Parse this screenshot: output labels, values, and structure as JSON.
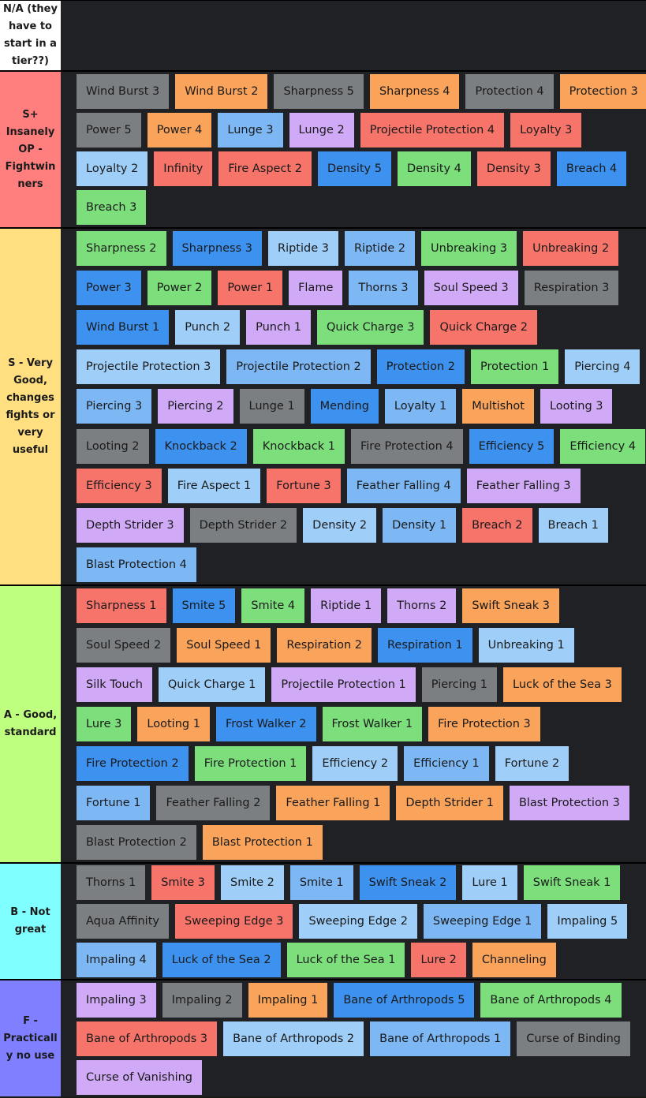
{
  "colors": {
    "orange": "#f9a35b",
    "gray": "#7c7f82",
    "blue": "#3d92f0",
    "light_blue": "#9fcff8",
    "sky": "#7db8f5",
    "green": "#7cdf7c",
    "red": "#f6746a",
    "purple": "#d0aaf6",
    "board": "#1f2125"
  },
  "tiers": [
    {
      "label": "N/A (they\nhave to\nstart in a\ntier??)",
      "color": "#ffffff",
      "rows": []
    },
    {
      "label": "S+\nInsanely\nOP -\nFightwin\nners",
      "color": "#ff7f7e",
      "rows": [
        [
          {
            "name": "Wind Burst 3",
            "c": "gray"
          },
          {
            "name": "Wind Burst 2",
            "c": "orange"
          },
          {
            "name": "Sharpness 5",
            "c": "gray"
          },
          {
            "name": "Sharpness 4",
            "c": "orange"
          },
          {
            "name": "Protection 4",
            "c": "gray"
          },
          {
            "name": "Protection 3",
            "c": "orange"
          }
        ],
        [
          {
            "name": "Power 5",
            "c": "gray"
          },
          {
            "name": "Power 4",
            "c": "orange"
          },
          {
            "name": "Lunge 3",
            "c": "sky"
          },
          {
            "name": "Lunge 2",
            "c": "purple"
          },
          {
            "name": "Projectile Protection 4",
            "c": "red"
          },
          {
            "name": "Loyalty 3",
            "c": "red"
          }
        ],
        [
          {
            "name": "Loyalty 2",
            "c": "light_blue"
          },
          {
            "name": "Infinity",
            "c": "red"
          },
          {
            "name": "Fire Aspect 2",
            "c": "red"
          },
          {
            "name": "Density 5",
            "c": "blue"
          },
          {
            "name": "Density 4",
            "c": "green"
          },
          {
            "name": "Density 3",
            "c": "red"
          },
          {
            "name": "Breach 4",
            "c": "blue"
          }
        ],
        [
          {
            "name": "Breach 3",
            "c": "green"
          }
        ]
      ]
    },
    {
      "label": "S - Very\nGood,\nchanges\nfights or\nvery\nuseful",
      "color": "#ffdf80",
      "rows": [
        [
          {
            "name": "Sharpness 2",
            "c": "green"
          },
          {
            "name": "Sharpness 3",
            "c": "blue"
          },
          {
            "name": "Riptide 3",
            "c": "light_blue"
          },
          {
            "name": "Riptide 2",
            "c": "sky"
          },
          {
            "name": "Unbreaking 3",
            "c": "green"
          },
          {
            "name": "Unbreaking 2",
            "c": "red"
          }
        ],
        [
          {
            "name": "Power 3",
            "c": "blue"
          },
          {
            "name": "Power 2",
            "c": "green"
          },
          {
            "name": "Power 1",
            "c": "red"
          },
          {
            "name": "Flame",
            "c": "purple"
          },
          {
            "name": "Thorns 3",
            "c": "sky"
          },
          {
            "name": "Soul Speed 3",
            "c": "purple"
          },
          {
            "name": "Respiration 3",
            "c": "gray"
          }
        ],
        [
          {
            "name": "Wind Burst 1",
            "c": "blue"
          },
          {
            "name": "Punch 2",
            "c": "light_blue"
          },
          {
            "name": "Punch 1",
            "c": "purple"
          },
          {
            "name": "Quick Charge 3",
            "c": "green"
          },
          {
            "name": "Quick Charge 2",
            "c": "red"
          }
        ],
        [
          {
            "name": "Projectile Protection 3",
            "c": "light_blue"
          },
          {
            "name": "Projectile Protection 2",
            "c": "sky"
          },
          {
            "name": "Protection 2",
            "c": "blue"
          },
          {
            "name": "Protection 1",
            "c": "green"
          },
          {
            "name": "Piercing 4",
            "c": "light_blue"
          }
        ],
        [
          {
            "name": "Piercing 3",
            "c": "sky"
          },
          {
            "name": "Piercing 2",
            "c": "purple"
          },
          {
            "name": "Lunge 1",
            "c": "gray"
          },
          {
            "name": "Mending",
            "c": "blue"
          },
          {
            "name": "Loyalty 1",
            "c": "sky"
          },
          {
            "name": "Multishot",
            "c": "orange"
          },
          {
            "name": "Looting 3",
            "c": "purple"
          }
        ],
        [
          {
            "name": "Looting 2",
            "c": "gray"
          },
          {
            "name": "Knockback 2",
            "c": "blue"
          },
          {
            "name": "Knockback 1",
            "c": "green"
          },
          {
            "name": "Fire Protection 4",
            "c": "gray"
          },
          {
            "name": "Efficiency 5",
            "c": "blue"
          },
          {
            "name": "Efficiency 4",
            "c": "green"
          }
        ],
        [
          {
            "name": "Efficiency 3",
            "c": "red"
          },
          {
            "name": "Fire Aspect 1",
            "c": "light_blue"
          },
          {
            "name": "Fortune 3",
            "c": "red"
          },
          {
            "name": "Feather Falling 4",
            "c": "sky"
          },
          {
            "name": "Feather Falling 3",
            "c": "purple"
          }
        ],
        [
          {
            "name": "Depth Strider 3",
            "c": "purple"
          },
          {
            "name": "Depth Strider 2",
            "c": "gray"
          },
          {
            "name": "Density 2",
            "c": "light_blue"
          },
          {
            "name": "Density 1",
            "c": "sky"
          },
          {
            "name": "Breach 2",
            "c": "red"
          },
          {
            "name": "Breach 1",
            "c": "light_blue"
          }
        ],
        [
          {
            "name": "Blast Protection 4",
            "c": "sky"
          }
        ]
      ]
    },
    {
      "label": "A - Good,\nstandard",
      "color": "#bfff7f",
      "rows": [
        [
          {
            "name": "Sharpness 1",
            "c": "red"
          },
          {
            "name": "Smite 5",
            "c": "blue"
          },
          {
            "name": "Smite 4",
            "c": "green"
          },
          {
            "name": "Riptide 1",
            "c": "purple"
          },
          {
            "name": "Thorns 2",
            "c": "purple"
          },
          {
            "name": "Swift Sneak 3",
            "c": "orange"
          }
        ],
        [
          {
            "name": "Soul Speed 2",
            "c": "gray"
          },
          {
            "name": "Soul Speed 1",
            "c": "orange"
          },
          {
            "name": "Respiration 2",
            "c": "orange"
          },
          {
            "name": "Respiration 1",
            "c": "blue"
          },
          {
            "name": "Unbreaking 1",
            "c": "light_blue"
          }
        ],
        [
          {
            "name": "Silk Touch",
            "c": "purple"
          },
          {
            "name": "Quick Charge 1",
            "c": "light_blue"
          },
          {
            "name": "Projectile Protection 1",
            "c": "purple"
          },
          {
            "name": "Piercing 1",
            "c": "gray"
          },
          {
            "name": "Luck of the Sea 3",
            "c": "orange"
          }
        ],
        [
          {
            "name": "Lure 3",
            "c": "green"
          },
          {
            "name": "Looting 1",
            "c": "orange"
          },
          {
            "name": "Frost Walker 2",
            "c": "blue"
          },
          {
            "name": "Frost Walker 1",
            "c": "green"
          },
          {
            "name": "Fire Protection 3",
            "c": "orange"
          }
        ],
        [
          {
            "name": "Fire Protection 2",
            "c": "blue"
          },
          {
            "name": "Fire Protection 1",
            "c": "green"
          },
          {
            "name": "Efficiency 2",
            "c": "light_blue"
          },
          {
            "name": "Efficiency 1",
            "c": "sky"
          },
          {
            "name": "Fortune 2",
            "c": "light_blue"
          }
        ],
        [
          {
            "name": "Fortune 1",
            "c": "sky"
          },
          {
            "name": "Feather Falling 2",
            "c": "gray"
          },
          {
            "name": "Feather Falling 1",
            "c": "orange"
          },
          {
            "name": "Depth Strider 1",
            "c": "orange"
          },
          {
            "name": "Blast Protection 3",
            "c": "purple"
          }
        ],
        [
          {
            "name": "Blast Protection 2",
            "c": "gray"
          },
          {
            "name": "Blast Protection 1",
            "c": "orange"
          }
        ]
      ]
    },
    {
      "label": "B - Not\ngreat",
      "color": "#7fffff",
      "rows": [
        [
          {
            "name": "Thorns 1",
            "c": "gray"
          },
          {
            "name": "Smite 3",
            "c": "red"
          },
          {
            "name": "Smite 2",
            "c": "light_blue"
          },
          {
            "name": "Smite 1",
            "c": "sky"
          },
          {
            "name": "Swift Sneak 2",
            "c": "blue"
          },
          {
            "name": "Lure 1",
            "c": "light_blue"
          },
          {
            "name": "Swift Sneak 1",
            "c": "green"
          }
        ],
        [
          {
            "name": "Aqua Affinity",
            "c": "gray"
          },
          {
            "name": "Sweeping Edge 3",
            "c": "red"
          },
          {
            "name": "Sweeping Edge 2",
            "c": "light_blue"
          },
          {
            "name": "Sweeping Edge 1",
            "c": "sky"
          },
          {
            "name": "Impaling 5",
            "c": "light_blue"
          }
        ],
        [
          {
            "name": "Impaling 4",
            "c": "sky"
          },
          {
            "name": "Luck of the Sea 2",
            "c": "blue"
          },
          {
            "name": "Luck of the Sea 1",
            "c": "green"
          },
          {
            "name": "Lure 2",
            "c": "red"
          },
          {
            "name": "Channeling",
            "c": "orange"
          }
        ]
      ]
    },
    {
      "label": "F -\nPracticall\ny no use",
      "color": "#7f7fff",
      "rows": [
        [
          {
            "name": "Impaling 3",
            "c": "purple"
          },
          {
            "name": "Impaling 2",
            "c": "gray"
          },
          {
            "name": "Impaling 1",
            "c": "orange"
          },
          {
            "name": "Bane of Arthropods 5",
            "c": "blue"
          },
          {
            "name": "Bane of Arthropods 4",
            "c": "green"
          }
        ],
        [
          {
            "name": "Bane of Arthropods 3",
            "c": "red"
          },
          {
            "name": "Bane of Arthropods 2",
            "c": "light_blue"
          },
          {
            "name": "Bane of Arthropods 1",
            "c": "sky"
          },
          {
            "name": "Curse of Binding",
            "c": "gray"
          }
        ],
        [
          {
            "name": "Curse of Vanishing",
            "c": "purple"
          }
        ]
      ]
    }
  ]
}
